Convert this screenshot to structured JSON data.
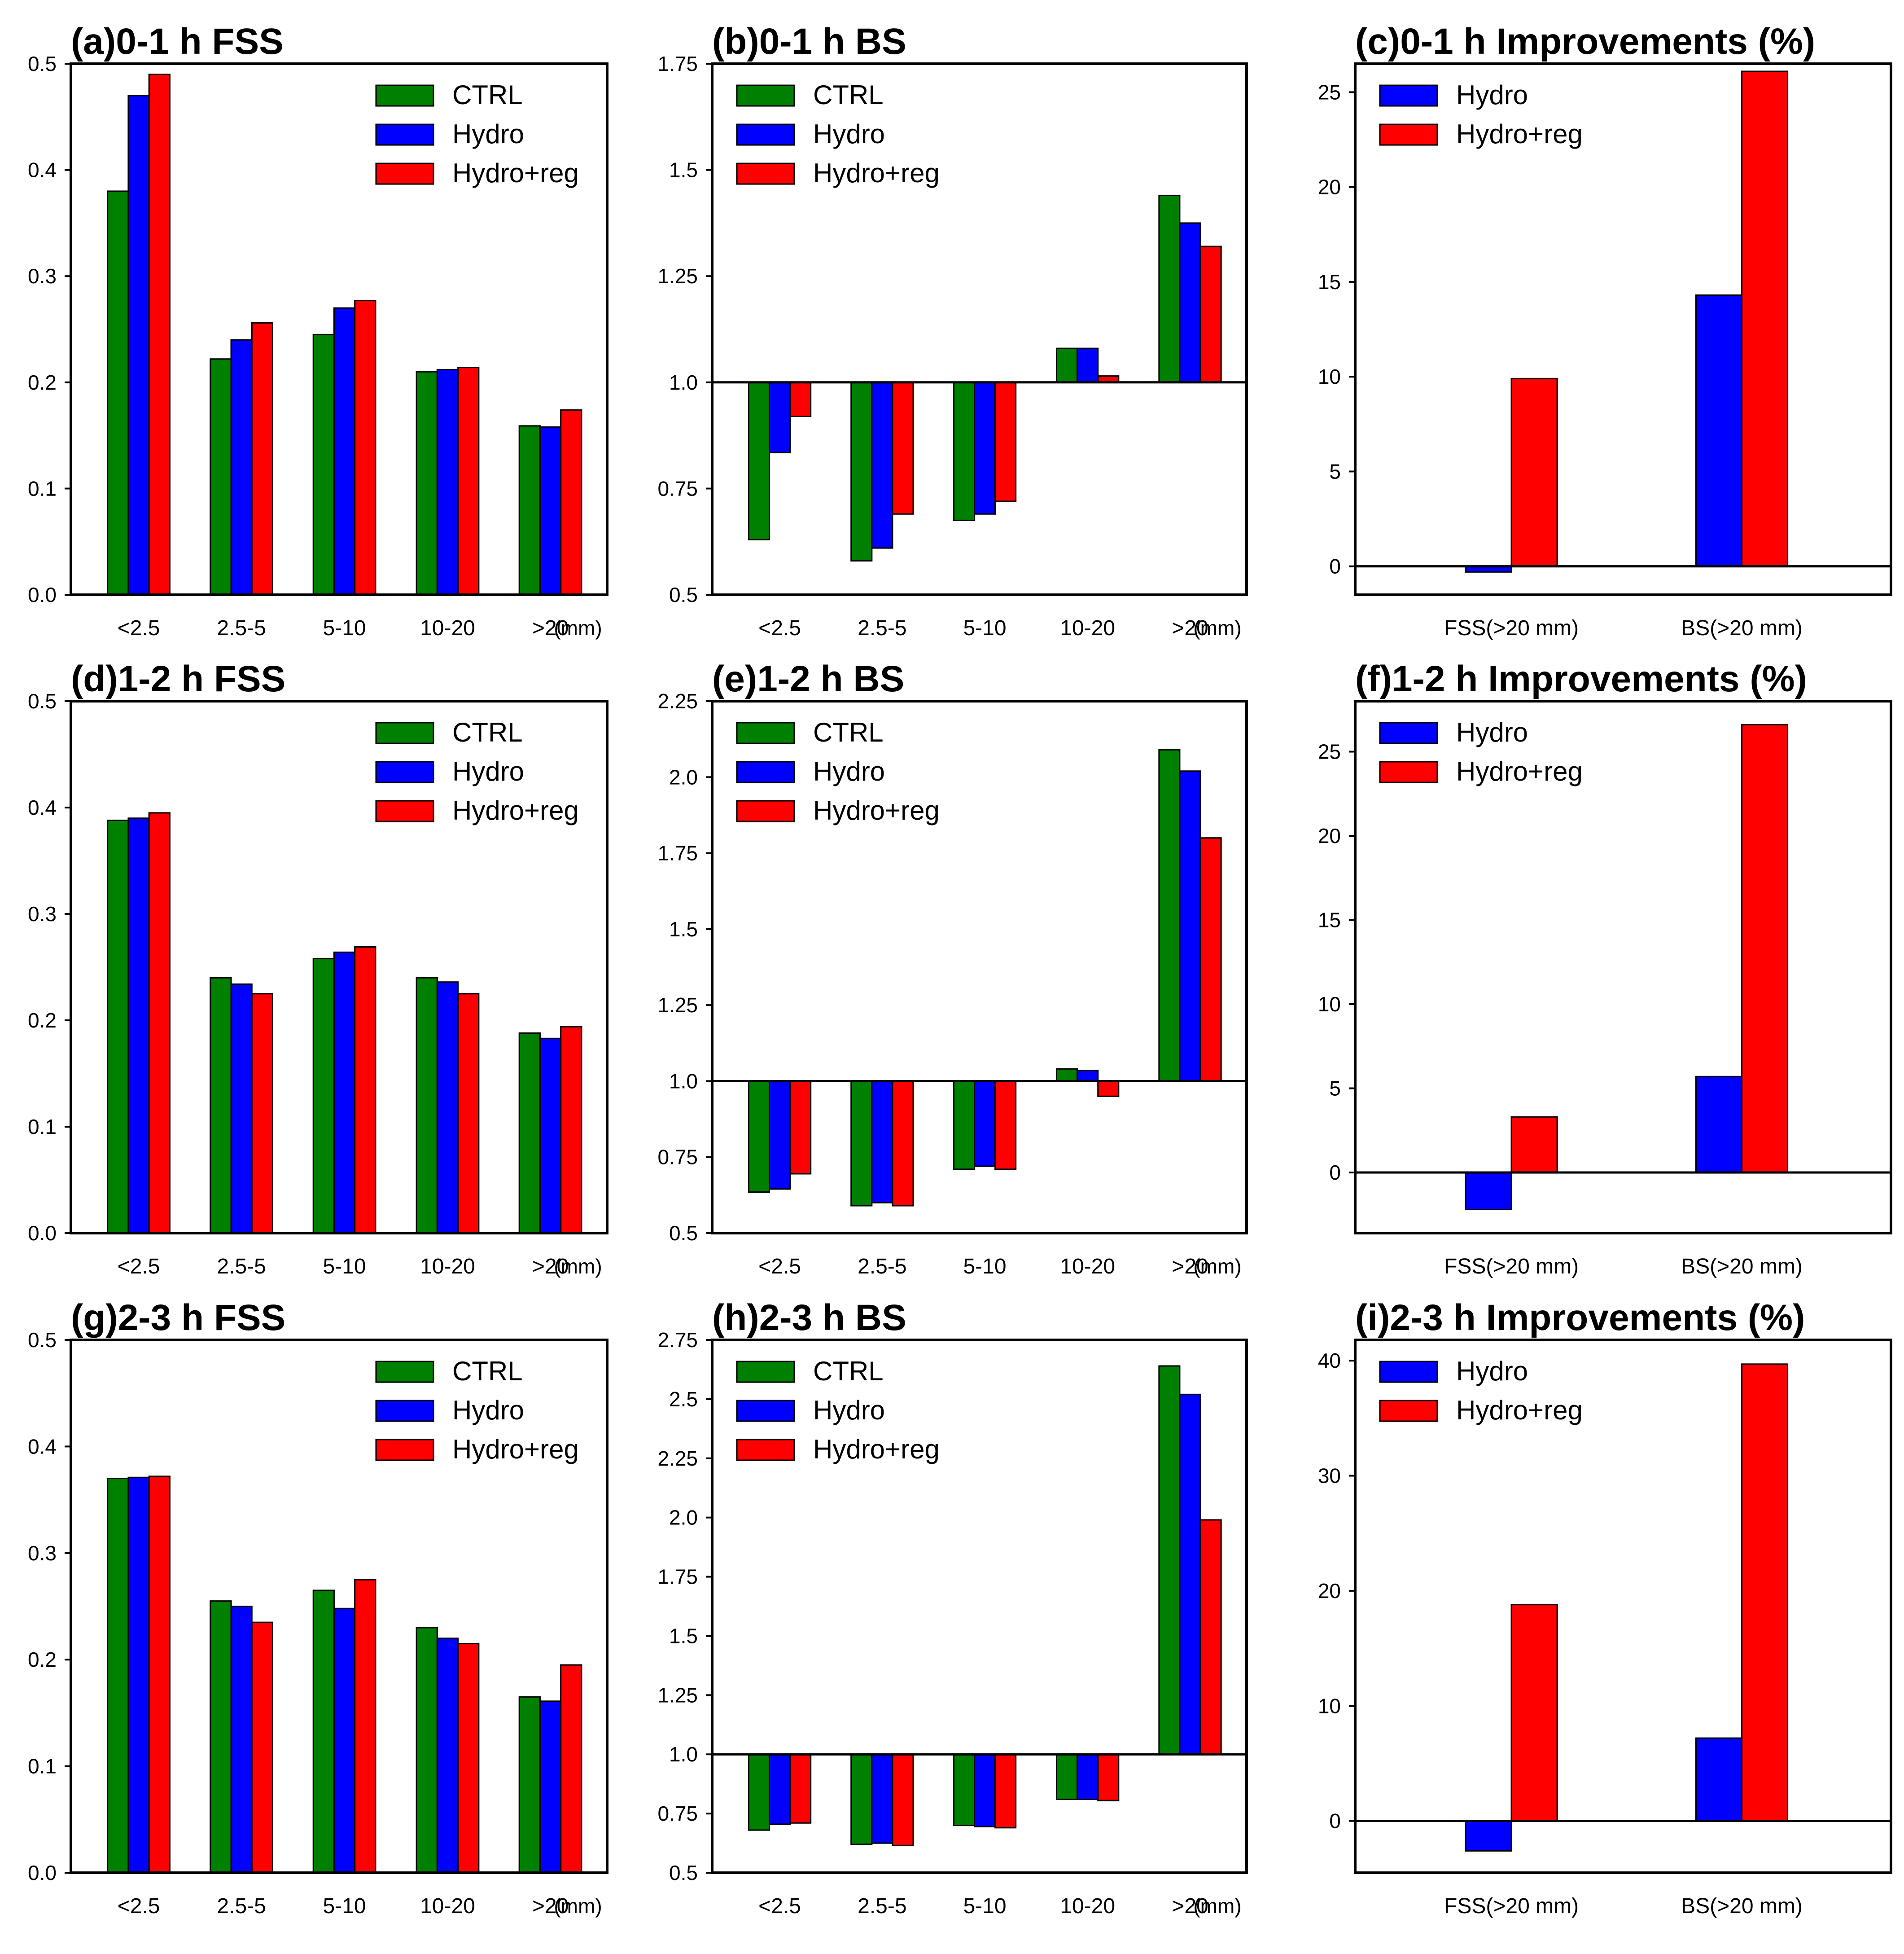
{
  "colors": {
    "CTRL": "#008000",
    "Hydro": "#0000ff",
    "Hydro+reg": "#ff0000"
  },
  "chart_data": [
    {
      "id": "a",
      "type": "bar",
      "title": "(a)0-1 h FSS",
      "categories": [
        "<2.5",
        "2.5-5",
        "5-10",
        "10-20",
        ">20"
      ],
      "unit": "(mm)",
      "ylim": [
        0,
        0.5
      ],
      "yticks": [
        "0.0",
        "0.1",
        "0.2",
        "0.3",
        "0.4",
        "0.5"
      ],
      "baseline": 0,
      "series": [
        {
          "name": "CTRL",
          "values": [
            0.38,
            0.222,
            0.245,
            0.21,
            0.159
          ]
        },
        {
          "name": "Hydro",
          "values": [
            0.47,
            0.24,
            0.27,
            0.212,
            0.158
          ]
        },
        {
          "name": "Hydro+reg",
          "values": [
            0.49,
            0.256,
            0.277,
            0.214,
            0.174
          ]
        }
      ]
    },
    {
      "id": "b",
      "type": "bar",
      "title": "(b)0-1 h BS",
      "categories": [
        "<2.5",
        "2.5-5",
        "5-10",
        "10-20",
        ">20"
      ],
      "unit": "(mm)",
      "ylim": [
        0.5,
        1.75
      ],
      "yticks": [
        "0.5",
        "0.75",
        "1.0",
        "1.25",
        "1.5",
        "1.75"
      ],
      "baseline": 1.0,
      "series": [
        {
          "name": "CTRL",
          "values": [
            0.63,
            0.58,
            0.675,
            1.08,
            1.44
          ]
        },
        {
          "name": "Hydro",
          "values": [
            0.835,
            0.61,
            0.69,
            1.08,
            1.375
          ]
        },
        {
          "name": "Hydro+reg",
          "values": [
            0.92,
            0.69,
            0.72,
            1.015,
            1.32
          ]
        }
      ]
    },
    {
      "id": "c",
      "type": "bar",
      "title": "(c)0-1 h Improvements (%)",
      "categories": [
        "FSS(>20 mm)",
        "BS(>20 mm)"
      ],
      "ylim": [
        -1.5,
        26.5
      ],
      "yticks": [
        "0",
        "5",
        "10",
        "15",
        "20",
        "25"
      ],
      "ytick_values": [
        0,
        5,
        10,
        15,
        20,
        25
      ],
      "baseline": 0,
      "series": [
        {
          "name": "Hydro",
          "values": [
            -0.3,
            14.3
          ]
        },
        {
          "name": "Hydro+reg",
          "values": [
            9.9,
            26.1
          ]
        }
      ]
    },
    {
      "id": "d",
      "type": "bar",
      "title": "(d)1-2 h FSS",
      "categories": [
        "<2.5",
        "2.5-5",
        "5-10",
        "10-20",
        ">20"
      ],
      "unit": "(mm)",
      "ylim": [
        0,
        0.5
      ],
      "yticks": [
        "0.0",
        "0.1",
        "0.2",
        "0.3",
        "0.4",
        "0.5"
      ],
      "baseline": 0,
      "series": [
        {
          "name": "CTRL",
          "values": [
            0.388,
            0.24,
            0.258,
            0.24,
            0.188
          ]
        },
        {
          "name": "Hydro",
          "values": [
            0.39,
            0.234,
            0.264,
            0.236,
            0.183
          ]
        },
        {
          "name": "Hydro+reg",
          "values": [
            0.395,
            0.225,
            0.269,
            0.225,
            0.194
          ]
        }
      ]
    },
    {
      "id": "e",
      "type": "bar",
      "title": "(e)1-2 h BS",
      "categories": [
        "<2.5",
        "2.5-5",
        "5-10",
        "10-20",
        ">20"
      ],
      "unit": "(mm)",
      "ylim": [
        0.5,
        2.25
      ],
      "yticks": [
        "0.5",
        "0.75",
        "1.0",
        "1.25",
        "1.5",
        "1.75",
        "2.0",
        "2.25"
      ],
      "baseline": 1.0,
      "series": [
        {
          "name": "CTRL",
          "values": [
            0.635,
            0.59,
            0.71,
            1.04,
            2.09
          ]
        },
        {
          "name": "Hydro",
          "values": [
            0.645,
            0.6,
            0.72,
            1.035,
            2.02
          ]
        },
        {
          "name": "Hydro+reg",
          "values": [
            0.695,
            0.59,
            0.71,
            0.95,
            1.8
          ]
        }
      ]
    },
    {
      "id": "f",
      "type": "bar",
      "title": "(f)1-2 h Improvements (%)",
      "categories": [
        "FSS(>20 mm)",
        "BS(>20 mm)"
      ],
      "ylim": [
        -3.6,
        28
      ],
      "yticks": [
        "0",
        "5",
        "10",
        "15",
        "20",
        "25"
      ],
      "ytick_values": [
        0,
        5,
        10,
        15,
        20,
        25
      ],
      "baseline": 0,
      "series": [
        {
          "name": "Hydro",
          "values": [
            -2.2,
            5.7
          ]
        },
        {
          "name": "Hydro+reg",
          "values": [
            3.3,
            26.6
          ]
        }
      ]
    },
    {
      "id": "g",
      "type": "bar",
      "title": "(g)2-3 h FSS",
      "categories": [
        "<2.5",
        "2.5-5",
        "5-10",
        "10-20",
        ">20"
      ],
      "unit": "(mm)",
      "ylim": [
        0,
        0.5
      ],
      "yticks": [
        "0.0",
        "0.1",
        "0.2",
        "0.3",
        "0.4",
        "0.5"
      ],
      "baseline": 0,
      "series": [
        {
          "name": "CTRL",
          "values": [
            0.37,
            0.255,
            0.265,
            0.23,
            0.165
          ]
        },
        {
          "name": "Hydro",
          "values": [
            0.371,
            0.25,
            0.248,
            0.22,
            0.161
          ]
        },
        {
          "name": "Hydro+reg",
          "values": [
            0.372,
            0.235,
            0.275,
            0.215,
            0.195
          ]
        }
      ]
    },
    {
      "id": "h",
      "type": "bar",
      "title": "(h)2-3 h BS",
      "categories": [
        "<2.5",
        "2.5-5",
        "5-10",
        "10-20",
        ">20"
      ],
      "unit": "(mm)",
      "ylim": [
        0.5,
        2.75
      ],
      "yticks": [
        "0.5",
        "0.75",
        "1.0",
        "1.25",
        "1.5",
        "1.75",
        "2.0",
        "2.25",
        "2.5",
        "2.75"
      ],
      "baseline": 1.0,
      "series": [
        {
          "name": "CTRL",
          "values": [
            0.68,
            0.62,
            0.7,
            0.81,
            2.64
          ]
        },
        {
          "name": "Hydro",
          "values": [
            0.705,
            0.625,
            0.695,
            0.81,
            2.52
          ]
        },
        {
          "name": "Hydro+reg",
          "values": [
            0.71,
            0.615,
            0.69,
            0.805,
            1.99
          ]
        }
      ]
    },
    {
      "id": "i",
      "type": "bar",
      "title": "(i)2-3 h Improvements (%)",
      "categories": [
        "FSS(>20 mm)",
        "BS(>20 mm)"
      ],
      "ylim": [
        -4.5,
        41.8
      ],
      "yticks": [
        "0",
        "10",
        "20",
        "30",
        "40"
      ],
      "ytick_values": [
        0,
        10,
        20,
        30,
        40
      ],
      "baseline": 0,
      "series": [
        {
          "name": "Hydro",
          "values": [
            -2.6,
            7.2
          ]
        },
        {
          "name": "Hydro+reg",
          "values": [
            18.8,
            39.7
          ]
        }
      ]
    }
  ]
}
